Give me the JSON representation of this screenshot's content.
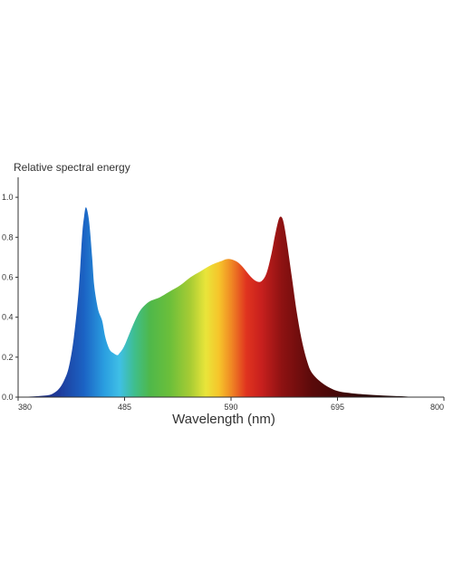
{
  "chart_data": {
    "type": "area",
    "title": "",
    "ylabel": "Relative spectral energy",
    "xlabel": "Wavelength (nm)",
    "xlim": [
      380,
      800
    ],
    "ylim": [
      0,
      1.1
    ],
    "x_ticks": [
      380,
      485,
      590,
      695,
      800
    ],
    "y_ticks": [
      0.0,
      0.2,
      0.4,
      0.6,
      0.8,
      1.0
    ],
    "y_tick_labels": [
      "0.0",
      "0.2",
      "0.4",
      "0.6",
      "0.8",
      "1.0"
    ],
    "grid": false,
    "legend": "none",
    "fill": "visible-spectrum gradient",
    "series": [
      {
        "x": [
          380,
          390,
          400,
          410,
          415,
          420,
          425,
          430,
          435,
          440,
          443,
          445,
          447,
          450,
          453,
          455,
          458,
          460,
          463,
          466,
          470,
          474,
          478,
          480,
          483,
          486,
          490,
          495,
          500,
          505,
          510,
          515,
          520,
          530,
          540,
          550,
          560,
          570,
          580,
          585,
          590,
          595,
          600,
          605,
          610,
          615,
          620,
          625,
          630,
          633,
          636,
          638,
          640,
          642,
          645,
          650,
          655,
          660,
          665,
          670,
          680,
          690,
          700,
          720,
          740,
          760,
          770
        ],
        "y": [
          0.0,
          0.002,
          0.005,
          0.01,
          0.02,
          0.04,
          0.08,
          0.15,
          0.3,
          0.55,
          0.8,
          0.9,
          0.95,
          0.88,
          0.7,
          0.56,
          0.46,
          0.42,
          0.38,
          0.3,
          0.24,
          0.22,
          0.21,
          0.22,
          0.24,
          0.27,
          0.32,
          0.38,
          0.43,
          0.46,
          0.48,
          0.49,
          0.5,
          0.53,
          0.56,
          0.6,
          0.63,
          0.66,
          0.68,
          0.69,
          0.69,
          0.68,
          0.66,
          0.63,
          0.6,
          0.58,
          0.58,
          0.62,
          0.72,
          0.8,
          0.87,
          0.9,
          0.9,
          0.87,
          0.78,
          0.6,
          0.42,
          0.28,
          0.18,
          0.12,
          0.07,
          0.04,
          0.025,
          0.014,
          0.008,
          0.004,
          0.0
        ]
      }
    ]
  }
}
